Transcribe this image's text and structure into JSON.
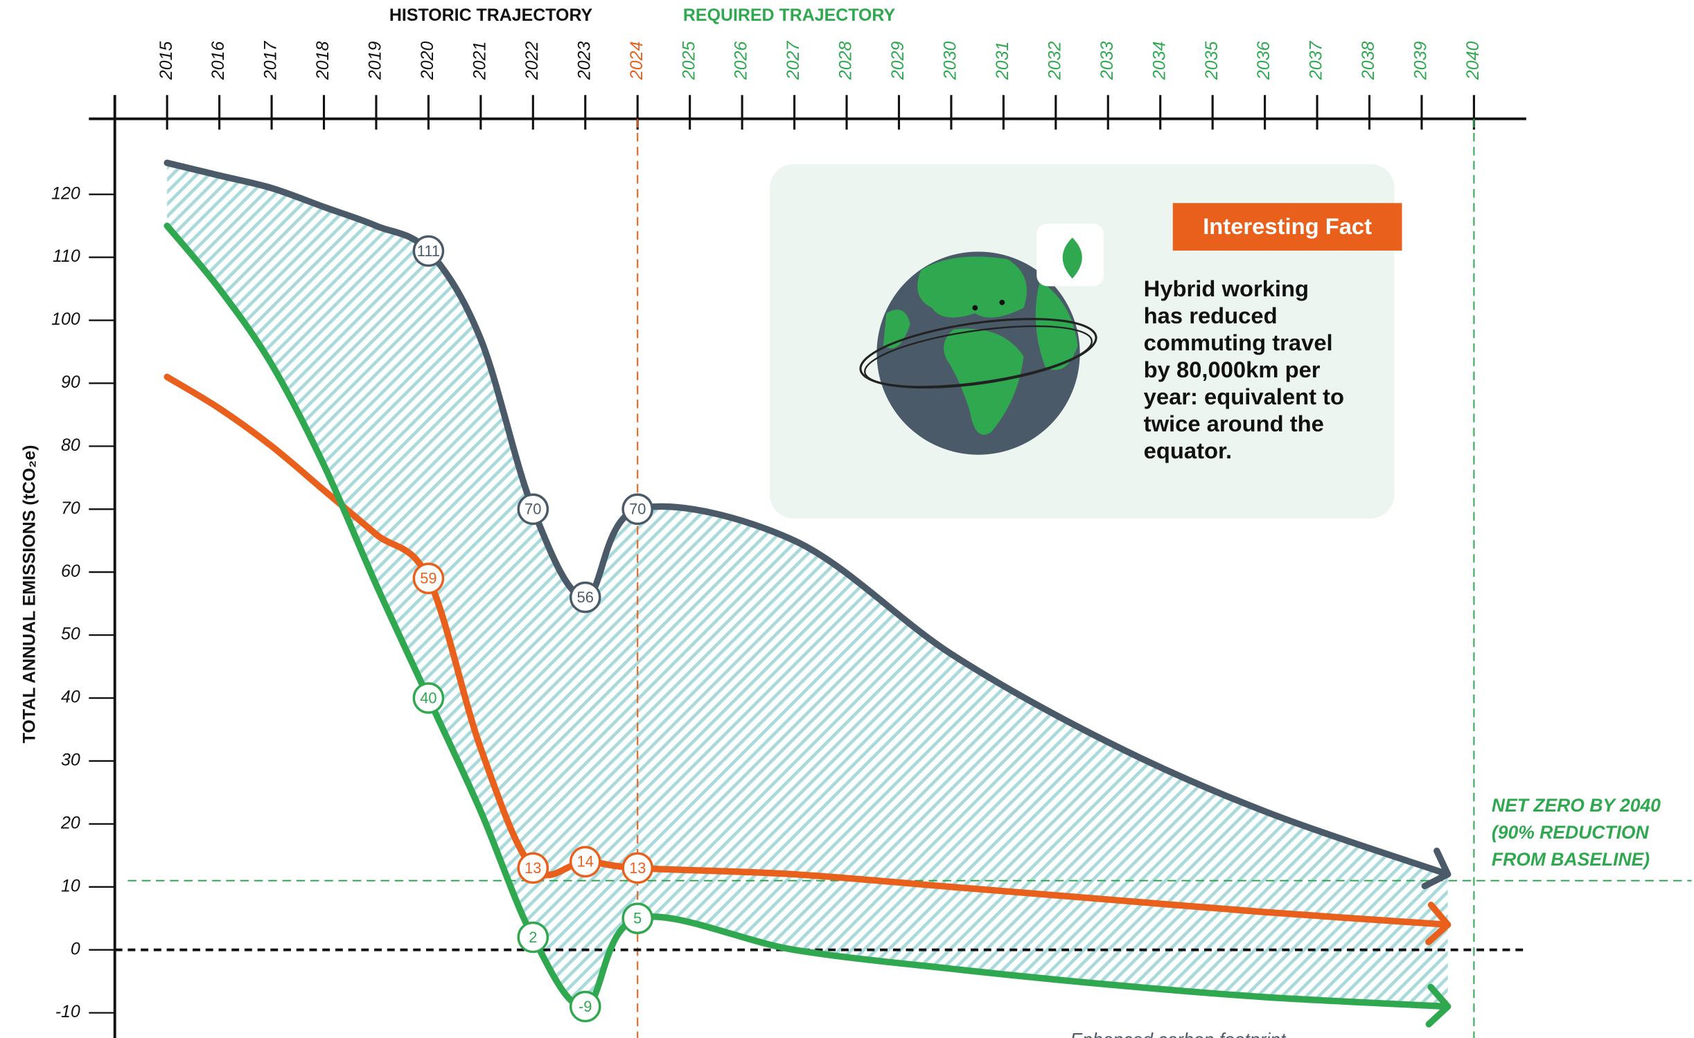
{
  "chart_data": {
    "type": "line",
    "header_left": "HISTORIC TRAJECTORY",
    "header_right": "REQUIRED TRAJECTORY",
    "y_label": "TOTAL ANNUAL EMISSIONS (tCO₂e)",
    "x": [
      2015,
      2016,
      2017,
      2018,
      2019,
      2020,
      2021,
      2022,
      2023,
      2024,
      2027,
      2030,
      2033,
      2036,
      2039.5
    ],
    "series": [
      {
        "color": "#4a5a68",
        "values": [
          125,
          123,
          121,
          118,
          115,
          111,
          97,
          70,
          56,
          70,
          65,
          47,
          33,
          22,
          12
        ],
        "value_labels": [
          null,
          null,
          null,
          null,
          null,
          "111",
          null,
          "70",
          "56",
          "70",
          null,
          null,
          null,
          null,
          null
        ]
      },
      {
        "color": "#e8601c",
        "values": [
          91,
          86,
          80,
          73,
          66,
          59,
          32,
          13,
          14,
          13,
          12,
          10,
          8,
          6,
          4
        ],
        "value_labels": [
          null,
          null,
          null,
          null,
          null,
          "59",
          null,
          "13",
          "14",
          "13",
          null,
          null,
          null,
          null,
          null
        ]
      },
      {
        "color": "#2fa84f",
        "values": [
          115,
          105,
          93,
          77,
          58,
          40,
          22,
          2,
          -9,
          5,
          0,
          -3,
          -5.5,
          -7.5,
          -9
        ],
        "value_labels": [
          null,
          null,
          null,
          null,
          null,
          "40",
          null,
          "2",
          "-9",
          "5",
          null,
          null,
          null,
          null,
          null
        ]
      }
    ],
    "xlim": [
      2014,
      2041
    ],
    "ylim": [
      -14,
      132
    ],
    "xticks": [
      2015,
      2016,
      2017,
      2018,
      2019,
      2020,
      2021,
      2022,
      2023,
      2024,
      2025,
      2026,
      2027,
      2028,
      2029,
      2030,
      2031,
      2032,
      2033,
      2034,
      2035,
      2036,
      2037,
      2038,
      2039,
      2040
    ],
    "xtick_colors": [
      "#111",
      "#111",
      "#111",
      "#111",
      "#111",
      "#111",
      "#111",
      "#111",
      "#111",
      "#e8601c",
      "#2fa84f",
      "#2fa84f",
      "#2fa84f",
      "#2fa84f",
      "#2fa84f",
      "#2fa84f",
      "#2fa84f",
      "#2fa84f",
      "#2fa84f",
      "#2fa84f",
      "#2fa84f",
      "#2fa84f",
      "#2fa84f",
      "#2fa84f",
      "#2fa84f",
      "#2fa84f"
    ],
    "yticks": [
      -10,
      0,
      10,
      20,
      30,
      40,
      50,
      60,
      70,
      80,
      90,
      100,
      110,
      120
    ],
    "reference_lines": [
      {
        "axis": "x",
        "value": 2024,
        "color": "#e8601c"
      },
      {
        "axis": "x",
        "value": 2040,
        "color": "#2fa84f"
      },
      {
        "axis": "y",
        "value": 11,
        "color": "#2fa84f"
      },
      {
        "axis": "y",
        "value": 0,
        "color": "#111"
      }
    ],
    "target_note": [
      "NET ZERO BY 2040",
      "(90% REDUCTION",
      "FROM BASELINE)"
    ],
    "footer_note": "Enhanced carbon footprint",
    "fact": {
      "title": "Interesting Fact",
      "lines": [
        "Hybrid working",
        "has reduced",
        "commuting travel",
        "by 80,000km per",
        "year: equivalent to",
        "twice around the",
        "equator."
      ]
    }
  }
}
